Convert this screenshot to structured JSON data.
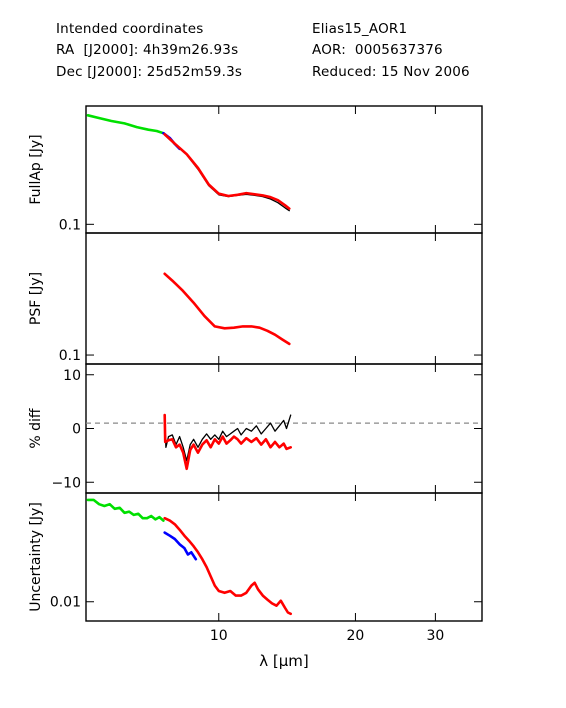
{
  "header": {
    "left": [
      "Intended coordinates",
      "RA  [J2000]: 4h39m26.93s",
      "Dec [J2000]: 25d52m59.3s"
    ],
    "right": [
      "Elias15_AOR1",
      "AOR:  0005637376",
      "Reduced: 15 Nov 2006"
    ]
  },
  "colors": {
    "sl": "#00e000",
    "ll": "#ff0000",
    "blue": "#0000ff",
    "black": "#000000",
    "ref": "#888888"
  },
  "chart_data": {
    "type": "line",
    "xlabel": "λ [μm]",
    "xlim": [
      5.1,
      38
    ],
    "xscale": "log",
    "xticks": [
      10,
      20,
      30
    ],
    "panels": [
      {
        "id": "fullap",
        "ylabel": "FullAp [Jy]",
        "yscale": "log",
        "ylim": [
          0.09,
          0.42
        ],
        "yticks": [
          {
            "v": 0.1,
            "label": "0.1"
          }
        ],
        "series": [
          {
            "color": "sl",
            "points": [
              [
                5.15,
                0.375
              ],
              [
                5.4,
                0.365
              ],
              [
                5.8,
                0.35
              ],
              [
                6.2,
                0.34
              ],
              [
                6.6,
                0.325
              ],
              [
                7.0,
                0.315
              ],
              [
                7.3,
                0.31
              ],
              [
                7.55,
                0.302
              ]
            ]
          },
          {
            "color": "blue",
            "points": [
              [
                7.55,
                0.302
              ],
              [
                7.8,
                0.285
              ],
              [
                8.0,
                0.265
              ],
              [
                8.2,
                0.25
              ]
            ]
          },
          {
            "color": "black",
            "points": [
              [
                7.6,
                0.295
              ],
              [
                8.0,
                0.264
              ],
              [
                8.5,
                0.232
              ],
              [
                9.0,
                0.195
              ],
              [
                9.5,
                0.16
              ],
              [
                10.0,
                0.143
              ],
              [
                10.5,
                0.14
              ],
              [
                11.0,
                0.142
              ],
              [
                11.5,
                0.144
              ],
              [
                12.0,
                0.142
              ],
              [
                12.5,
                0.14
              ],
              [
                13.0,
                0.136
              ],
              [
                13.5,
                0.13
              ],
              [
                14.0,
                0.122
              ],
              [
                14.3,
                0.118
              ]
            ]
          },
          {
            "color": "ll",
            "points": [
              [
                7.6,
                0.298
              ],
              [
                8.0,
                0.266
              ],
              [
                8.5,
                0.234
              ],
              [
                9.0,
                0.198
              ],
              [
                9.5,
                0.162
              ],
              [
                10.0,
                0.145
              ],
              [
                10.5,
                0.141
              ],
              [
                11.0,
                0.143
              ],
              [
                11.5,
                0.146
              ],
              [
                12.0,
                0.144
              ],
              [
                12.5,
                0.142
              ],
              [
                13.0,
                0.139
              ],
              [
                13.5,
                0.134
              ],
              [
                14.0,
                0.126
              ],
              [
                14.3,
                0.121
              ]
            ]
          }
        ]
      },
      {
        "id": "psf",
        "ylabel": "PSF [Jy]",
        "yscale": "log",
        "ylim": [
          0.09,
          0.42
        ],
        "yticks": [
          {
            "v": 0.1,
            "label": "0.1"
          }
        ],
        "series": [
          {
            "color": "ll",
            "points": [
              [
                7.6,
                0.26
              ],
              [
                7.9,
                0.24
              ],
              [
                8.3,
                0.215
              ],
              [
                8.8,
                0.185
              ],
              [
                9.3,
                0.158
              ],
              [
                9.8,
                0.14
              ],
              [
                10.3,
                0.137
              ],
              [
                10.8,
                0.138
              ],
              [
                11.3,
                0.14
              ],
              [
                11.8,
                0.14
              ],
              [
                12.3,
                0.138
              ],
              [
                12.8,
                0.133
              ],
              [
                13.3,
                0.127
              ],
              [
                13.8,
                0.12
              ],
              [
                14.3,
                0.114
              ]
            ]
          }
        ]
      },
      {
        "id": "pdiff",
        "ylabel": "% diff",
        "yscale": "linear",
        "ylim": [
          -12,
          12
        ],
        "yticks": [
          {
            "v": 10,
            "label": "10"
          },
          {
            "v": 0,
            "label": "0"
          },
          {
            "v": -10,
            "label": "−10"
          }
        ],
        "refline": 1,
        "series": [
          {
            "color": "black",
            "points": [
              [
                7.6,
                2
              ],
              [
                7.65,
                -3.5
              ],
              [
                7.75,
                -1.5
              ],
              [
                7.9,
                -1.2
              ],
              [
                8.05,
                -3
              ],
              [
                8.2,
                -1.5
              ],
              [
                8.35,
                -3.5
              ],
              [
                8.5,
                -6
              ],
              [
                8.65,
                -3
              ],
              [
                8.8,
                -2
              ],
              [
                9.0,
                -3.5
              ],
              [
                9.2,
                -2
              ],
              [
                9.4,
                -1
              ],
              [
                9.6,
                -2
              ],
              [
                9.8,
                -1.2
              ],
              [
                10.0,
                -2
              ],
              [
                10.2,
                -0.5
              ],
              [
                10.4,
                -1.5
              ],
              [
                10.6,
                -1
              ],
              [
                10.8,
                -0.5
              ],
              [
                11.0,
                0
              ],
              [
                11.2,
                -1.2
              ],
              [
                11.5,
                0
              ],
              [
                11.8,
                -0.5
              ],
              [
                12.1,
                0.5
              ],
              [
                12.4,
                -1
              ],
              [
                12.7,
                0
              ],
              [
                13.0,
                1
              ],
              [
                13.3,
                -0.5
              ],
              [
                13.6,
                0.5
              ],
              [
                13.9,
                1.5
              ],
              [
                14.1,
                0
              ],
              [
                14.4,
                2.5
              ]
            ]
          },
          {
            "color": "ll",
            "points": [
              [
                7.6,
                2.5
              ],
              [
                7.62,
                -2.5
              ],
              [
                7.75,
                -2.2
              ],
              [
                7.9,
                -2
              ],
              [
                8.05,
                -3.5
              ],
              [
                8.2,
                -3
              ],
              [
                8.35,
                -4.5
              ],
              [
                8.5,
                -7.5
              ],
              [
                8.65,
                -4
              ],
              [
                8.8,
                -3
              ],
              [
                9.0,
                -4.5
              ],
              [
                9.2,
                -3
              ],
              [
                9.4,
                -2.2
              ],
              [
                9.6,
                -3.5
              ],
              [
                9.8,
                -2
              ],
              [
                10.0,
                -2.8
              ],
              [
                10.2,
                -1.5
              ],
              [
                10.4,
                -2.8
              ],
              [
                10.6,
                -2.2
              ],
              [
                10.8,
                -1.5
              ],
              [
                11.0,
                -2
              ],
              [
                11.2,
                -2.8
              ],
              [
                11.5,
                -1.8
              ],
              [
                11.8,
                -2.5
              ],
              [
                12.1,
                -1.8
              ],
              [
                12.4,
                -3
              ],
              [
                12.7,
                -2
              ],
              [
                13.0,
                -3.5
              ],
              [
                13.3,
                -2.5
              ],
              [
                13.6,
                -3.5
              ],
              [
                13.9,
                -2.8
              ],
              [
                14.1,
                -3.8
              ],
              [
                14.4,
                -3.5
              ]
            ]
          }
        ]
      },
      {
        "id": "uncert",
        "ylabel": "Uncertainty [Jy]",
        "yscale": "log",
        "ylim": [
          0.007,
          0.075
        ],
        "yticks": [
          {
            "v": 0.01,
            "label": "0.01"
          }
        ],
        "series": [
          {
            "color": "sl",
            "points": [
              [
                5.15,
                0.066
              ],
              [
                5.3,
                0.066
              ],
              [
                5.45,
                0.061
              ],
              [
                5.6,
                0.059
              ],
              [
                5.75,
                0.061
              ],
              [
                5.9,
                0.056
              ],
              [
                6.05,
                0.057
              ],
              [
                6.2,
                0.052
              ],
              [
                6.35,
                0.053
              ],
              [
                6.5,
                0.05
              ],
              [
                6.65,
                0.051
              ],
              [
                6.8,
                0.047
              ],
              [
                6.95,
                0.047
              ],
              [
                7.1,
                0.049
              ],
              [
                7.25,
                0.046
              ],
              [
                7.4,
                0.048
              ],
              [
                7.55,
                0.045
              ]
            ]
          },
          {
            "color": "blue",
            "points": [
              [
                7.6,
                0.036
              ],
              [
                7.8,
                0.034
              ],
              [
                8.0,
                0.032
              ],
              [
                8.2,
                0.029
              ],
              [
                8.4,
                0.027
              ],
              [
                8.55,
                0.024
              ],
              [
                8.7,
                0.025
              ],
              [
                8.9,
                0.022
              ]
            ]
          },
          {
            "color": "ll",
            "points": [
              [
                7.6,
                0.047
              ],
              [
                7.8,
                0.045
              ],
              [
                8.0,
                0.042
              ],
              [
                8.2,
                0.038
              ],
              [
                8.4,
                0.034
              ],
              [
                8.6,
                0.031
              ],
              [
                8.8,
                0.028
              ],
              [
                9.0,
                0.025
              ],
              [
                9.2,
                0.022
              ],
              [
                9.4,
                0.019
              ],
              [
                9.6,
                0.016
              ],
              [
                9.8,
                0.0135
              ],
              [
                10.0,
                0.0122
              ],
              [
                10.3,
                0.0118
              ],
              [
                10.6,
                0.0122
              ],
              [
                10.9,
                0.0112
              ],
              [
                11.2,
                0.0112
              ],
              [
                11.5,
                0.0118
              ],
              [
                11.8,
                0.0135
              ],
              [
                12.0,
                0.0142
              ],
              [
                12.2,
                0.0126
              ],
              [
                12.5,
                0.0112
              ],
              [
                12.8,
                0.0104
              ],
              [
                13.1,
                0.0097
              ],
              [
                13.4,
                0.0093
              ],
              [
                13.7,
                0.0102
              ],
              [
                14.0,
                0.0089
              ],
              [
                14.2,
                0.0082
              ],
              [
                14.4,
                0.008
              ]
            ]
          }
        ]
      }
    ]
  }
}
